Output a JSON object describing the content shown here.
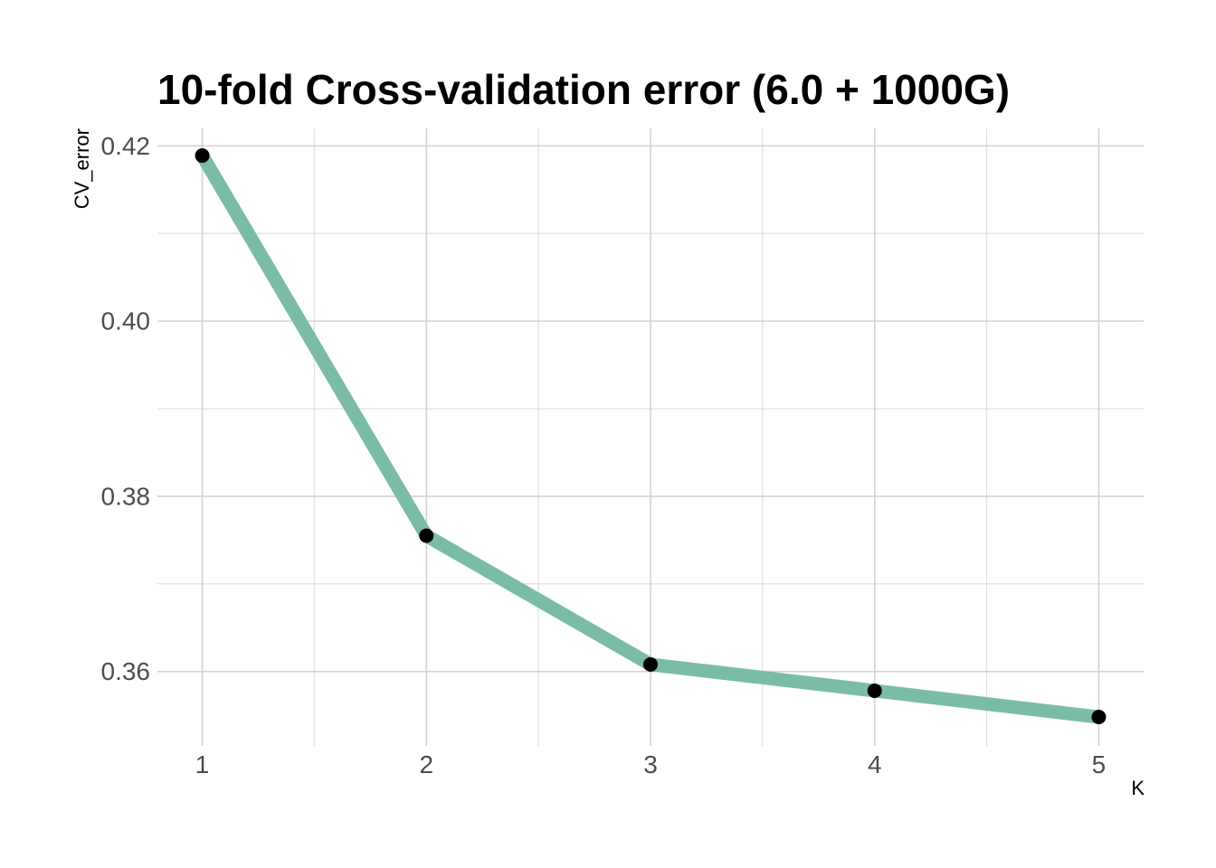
{
  "chart_data": {
    "type": "line",
    "title": "10-fold Cross-validation error (6.0 + 1000G)",
    "xlabel": "K",
    "ylabel": "CV_error",
    "x": [
      1,
      2,
      3,
      4,
      5
    ],
    "x_tick_labels": [
      "1",
      "2",
      "3",
      "4",
      "5"
    ],
    "series": [
      {
        "values": [
          0.4189,
          0.3755,
          0.3608,
          0.3578,
          0.3548
        ],
        "line_color": "#7bbca8",
        "point_color": "#000000"
      }
    ],
    "y_ticks": [
      0.36,
      0.38,
      0.4,
      0.42
    ],
    "y_tick_labels": [
      "0.36",
      "0.38",
      "0.40",
      "0.42"
    ],
    "xlim": [
      0.8,
      5.2
    ],
    "ylim": [
      0.3515,
      0.422
    ],
    "grid": true,
    "legend": "none"
  }
}
